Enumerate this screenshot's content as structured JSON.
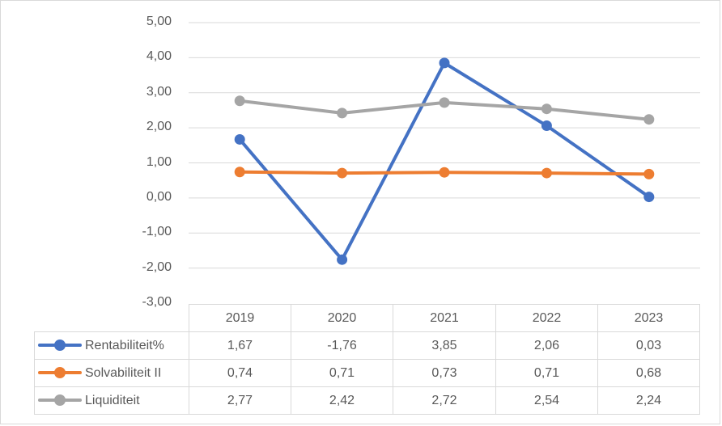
{
  "chart_data": {
    "type": "line",
    "title": "",
    "xlabel": "",
    "ylabel": "",
    "categories": [
      "2019",
      "2020",
      "2021",
      "2022",
      "2023"
    ],
    "series": [
      {
        "name": "Rentabiliteit%",
        "color": "#4472c4",
        "values": [
          1.67,
          -1.76,
          3.85,
          2.06,
          0.03
        ],
        "labels": [
          "1,67",
          "-1,76",
          "3,85",
          "2,06",
          "0,03"
        ]
      },
      {
        "name": "Solvabiliteit II",
        "color": "#ed7d31",
        "values": [
          0.74,
          0.71,
          0.73,
          0.71,
          0.68
        ],
        "labels": [
          "0,74",
          "0,71",
          "0,73",
          "0,71",
          "0,68"
        ]
      },
      {
        "name": "Liquiditeit",
        "color": "#a5a5a5",
        "values": [
          2.77,
          2.42,
          2.72,
          2.54,
          2.24
        ],
        "labels": [
          "2,77",
          "2,42",
          "2,72",
          "2,54",
          "2,24"
        ]
      }
    ],
    "ylim": [
      -3,
      5
    ],
    "yticks": [
      "5,00",
      "4,00",
      "3,00",
      "2,00",
      "1,00",
      "0,00",
      "-1,00",
      "-2,00",
      "-3,00"
    ],
    "grid": true,
    "legend_position": "data-table"
  }
}
